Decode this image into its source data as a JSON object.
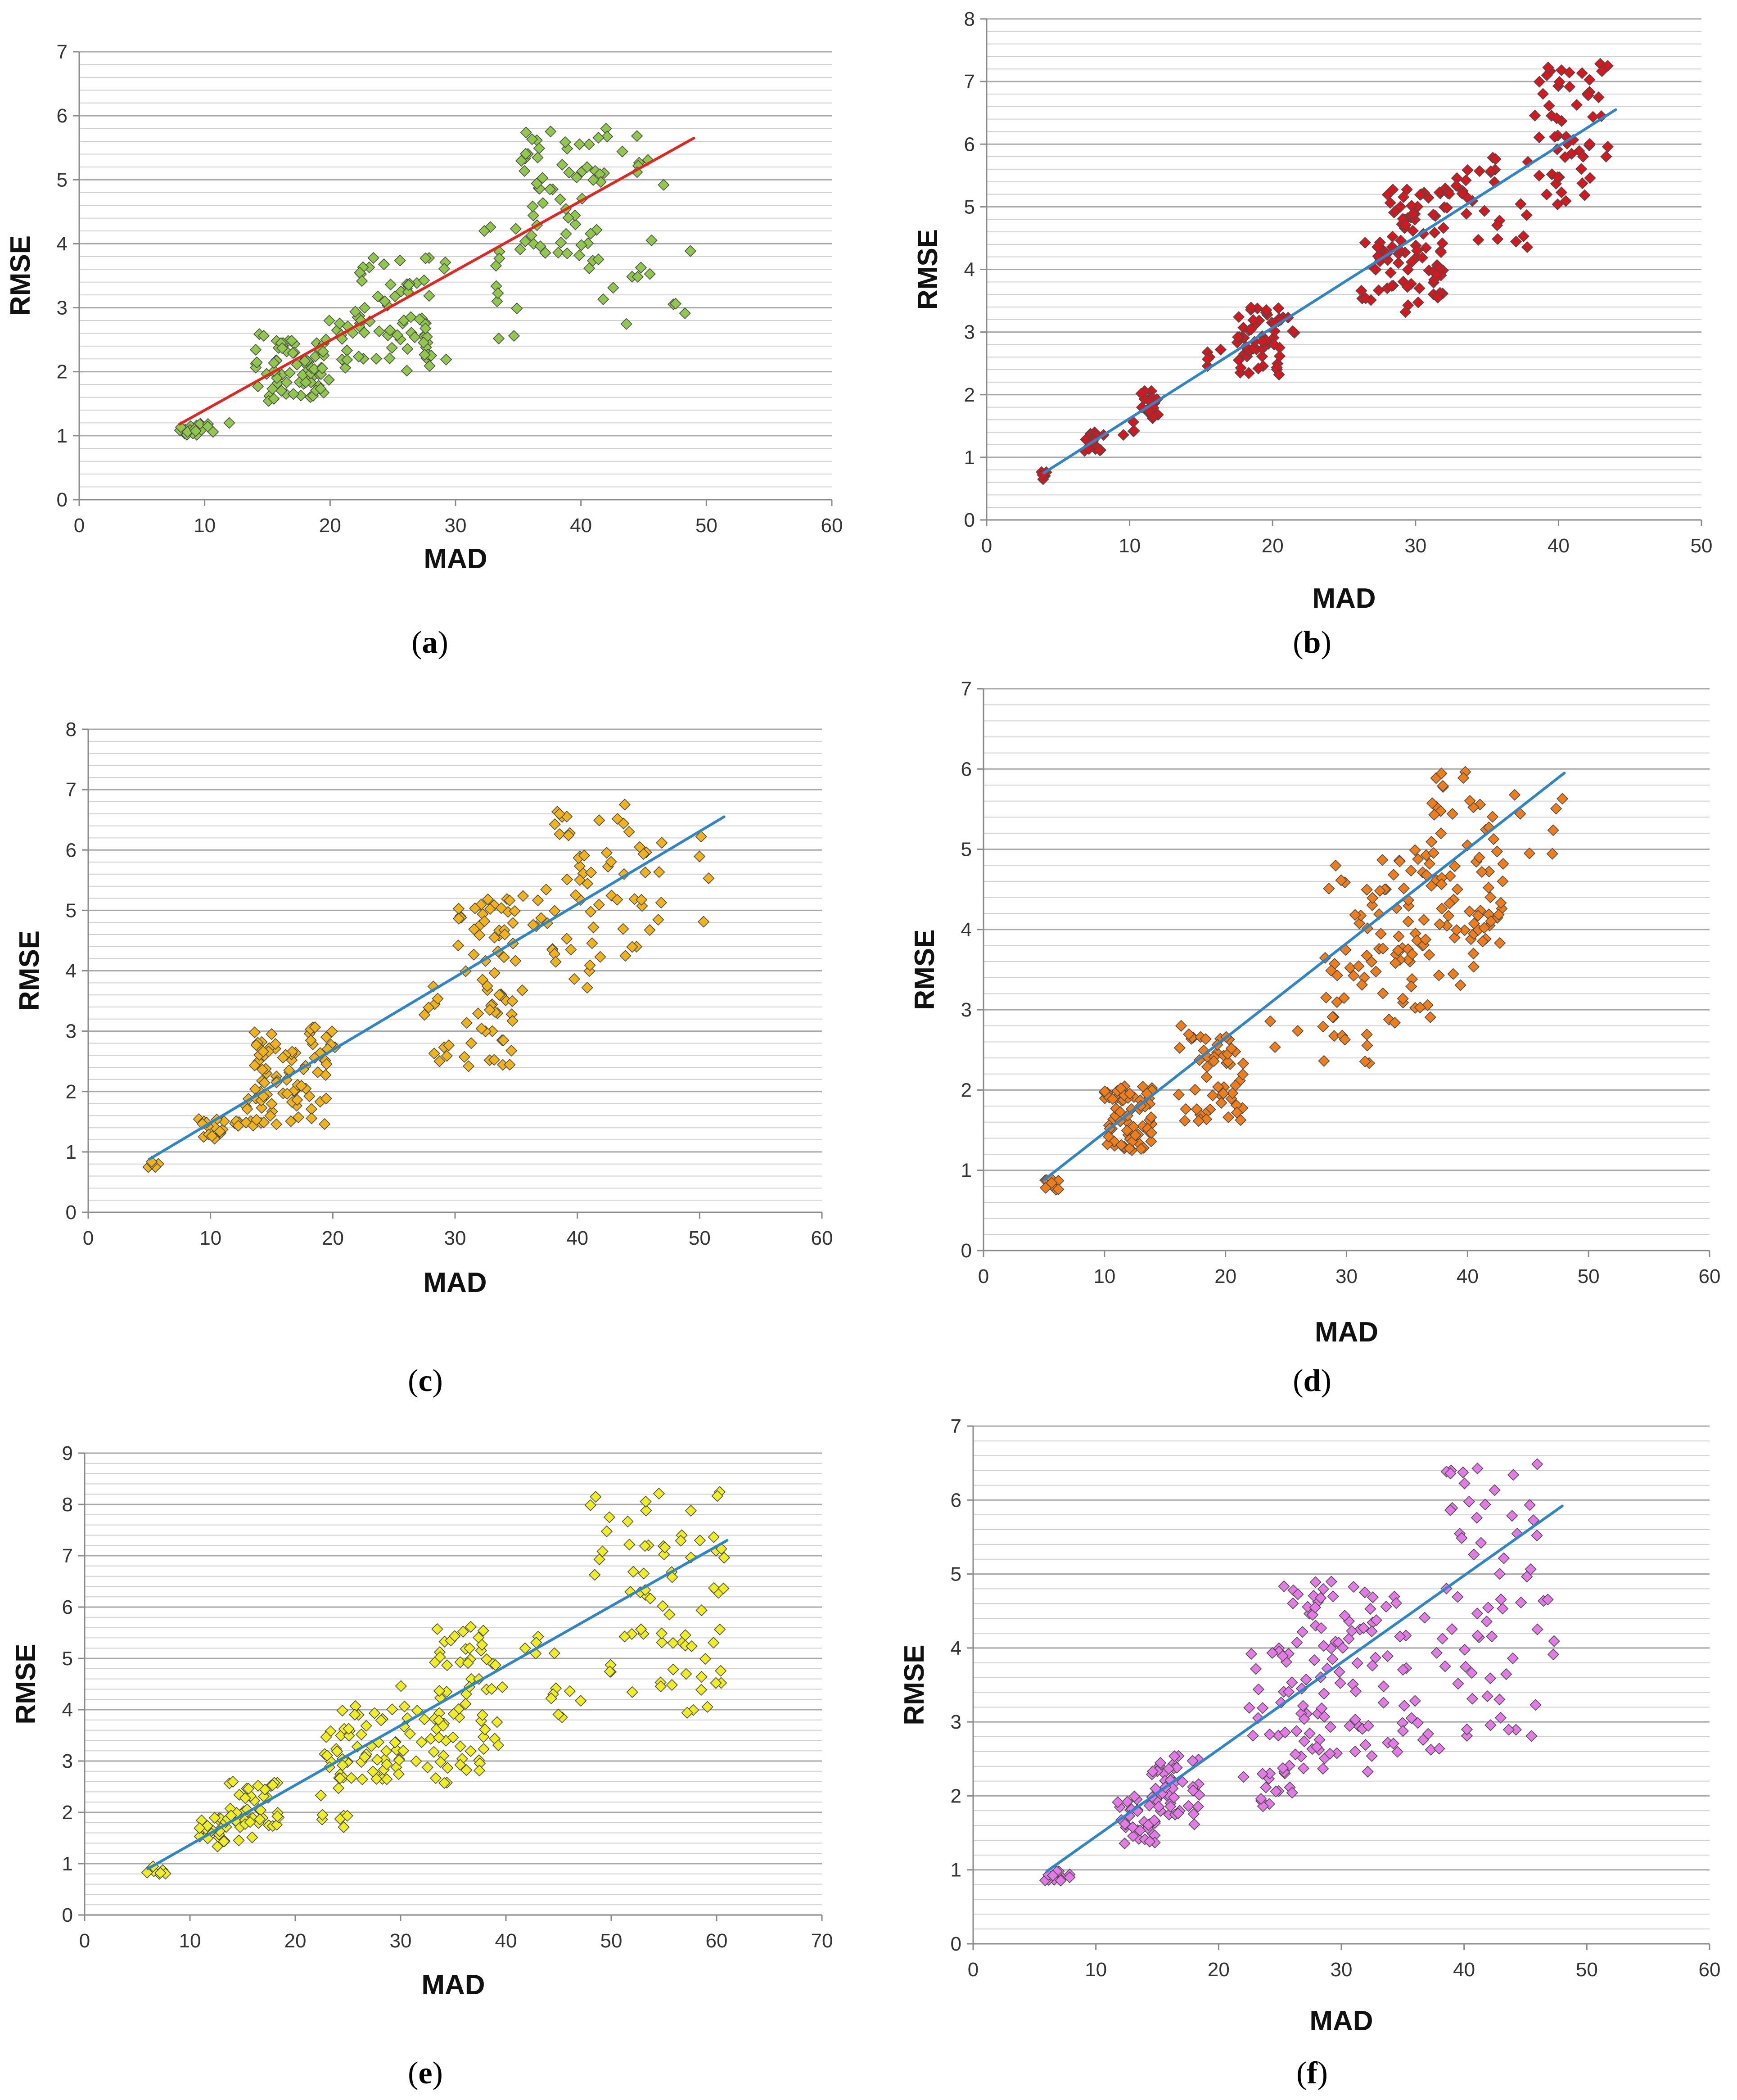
{
  "figure": {
    "panels": [
      {
        "id": "a",
        "caption_open": "(",
        "caption_letter": "a",
        "caption_close": ")",
        "marker_color": "#8fc84a",
        "trend_color": "#e3261f"
      },
      {
        "id": "b",
        "caption_open": "(",
        "caption_letter": "b",
        "caption_close": ")",
        "marker_color": "#d4181d",
        "trend_color": "#2e86c8"
      },
      {
        "id": "c",
        "caption_open": "(",
        "caption_letter": "c",
        "caption_close": ")",
        "marker_color": "#f0b31a",
        "trend_color": "#2e86c8"
      },
      {
        "id": "d",
        "caption_open": "(",
        "caption_letter": "d",
        "caption_close": ")",
        "marker_color": "#ef7d1a",
        "trend_color": "#2e86c8"
      },
      {
        "id": "e",
        "caption_open": "(",
        "caption_letter": "e",
        "caption_close": ")",
        "marker_color": "#eeee22",
        "trend_color": "#2e86c8"
      },
      {
        "id": "f",
        "caption_open": "(",
        "caption_letter": "f",
        "caption_close": ")",
        "marker_color": "#e37ae6",
        "trend_color": "#2e86c8"
      }
    ]
  },
  "chart_data": [
    {
      "type": "scatter",
      "panel": "a",
      "xlabel": "MAD",
      "ylabel": "RMSE",
      "xlim": [
        0,
        60
      ],
      "ylim": [
        0,
        7
      ],
      "xticks": [
        0,
        10,
        20,
        30,
        40,
        50,
        60
      ],
      "yticks": [
        0,
        1,
        2,
        3,
        4,
        5,
        6,
        7
      ],
      "grid": true,
      "trendline": {
        "x": [
          8,
          49
        ],
        "y": [
          1.18,
          5.65
        ]
      },
      "clusters": [
        {
          "x": [
            7.9,
            10
          ],
          "y": [
            1.0,
            1.2
          ],
          "n": 20
        },
        {
          "x": [
            10,
            12
          ],
          "y": [
            1.05,
            1.2
          ],
          "n": 4
        },
        {
          "x": [
            14,
            16.5
          ],
          "y": [
            1.4,
            2.6
          ],
          "n": 16
        },
        {
          "x": [
            15.5,
            19.5
          ],
          "y": [
            1.6,
            2.5
          ],
          "n": 55
        },
        {
          "x": [
            19,
            22
          ],
          "y": [
            1.8,
            3.0
          ],
          "n": 15
        },
        {
          "x": [
            22,
            28
          ],
          "y": [
            2.2,
            3.8
          ],
          "n": 55
        },
        {
          "x": [
            26,
            29.5
          ],
          "y": [
            2.0,
            3.8
          ],
          "n": 14
        },
        {
          "x": [
            32,
            35
          ],
          "y": [
            2.4,
            4.3
          ],
          "n": 12
        },
        {
          "x": [
            35,
            42
          ],
          "y": [
            3.5,
            5.8
          ],
          "n": 55
        },
        {
          "x": [
            40,
            46
          ],
          "y": [
            2.6,
            5.7
          ],
          "n": 22
        },
        {
          "x": [
            46,
            49
          ],
          "y": [
            2.8,
            5.3
          ],
          "n": 5
        }
      ]
    },
    {
      "type": "scatter",
      "panel": "b",
      "xlabel": "MAD",
      "ylabel": "RMSE",
      "xlim": [
        0,
        50
      ],
      "ylim": [
        0,
        8
      ],
      "xticks": [
        0,
        10,
        20,
        30,
        40,
        50
      ],
      "yticks": [
        0,
        1,
        2,
        3,
        4,
        5,
        6,
        7,
        8
      ],
      "grid": true,
      "trendline": {
        "x": [
          4,
          44
        ],
        "y": [
          0.75,
          6.55
        ]
      },
      "clusters": [
        {
          "x": [
            3.8,
            4.2
          ],
          "y": [
            0.6,
            0.8
          ],
          "n": 5
        },
        {
          "x": [
            6.8,
            8.2
          ],
          "y": [
            1.1,
            1.4
          ],
          "n": 16
        },
        {
          "x": [
            9,
            10.5
          ],
          "y": [
            1.3,
            1.6
          ],
          "n": 4
        },
        {
          "x": [
            10.8,
            12.2
          ],
          "y": [
            1.6,
            2.1
          ],
          "n": 22
        },
        {
          "x": [
            15,
            17
          ],
          "y": [
            2.4,
            2.8
          ],
          "n": 5
        },
        {
          "x": [
            17.5,
            20.5
          ],
          "y": [
            2.3,
            3.4
          ],
          "n": 55
        },
        {
          "x": [
            20.5,
            22
          ],
          "y": [
            2.9,
            3.3
          ],
          "n": 5
        },
        {
          "x": [
            26,
            28
          ],
          "y": [
            3.5,
            4.5
          ],
          "n": 15
        },
        {
          "x": [
            28,
            32
          ],
          "y": [
            3.3,
            5.3
          ],
          "n": 75
        },
        {
          "x": [
            32,
            35
          ],
          "y": [
            4.3,
            5.6
          ],
          "n": 18
        },
        {
          "x": [
            35,
            38
          ],
          "y": [
            4.2,
            6.0
          ],
          "n": 15
        },
        {
          "x": [
            38,
            44
          ],
          "y": [
            5.0,
            7.3
          ],
          "n": 55
        }
      ]
    },
    {
      "type": "scatter",
      "panel": "c",
      "xlabel": "MAD",
      "ylabel": "RMSE",
      "xlim": [
        0,
        60
      ],
      "ylim": [
        0,
        8
      ],
      "xticks": [
        0,
        10,
        20,
        30,
        40,
        50,
        60
      ],
      "yticks": [
        0,
        1,
        2,
        3,
        4,
        5,
        6,
        7,
        8
      ],
      "grid": true,
      "trendline": {
        "x": [
          5,
          52
        ],
        "y": [
          0.88,
          6.55
        ]
      },
      "clusters": [
        {
          "x": [
            4.8,
            6.2
          ],
          "y": [
            0.7,
            0.85
          ],
          "n": 6
        },
        {
          "x": [
            8.8,
            11.2
          ],
          "y": [
            1.2,
            1.6
          ],
          "n": 16
        },
        {
          "x": [
            11.5,
            13.5
          ],
          "y": [
            1.3,
            1.9
          ],
          "n": 10
        },
        {
          "x": [
            13.5,
            19.5
          ],
          "y": [
            1.4,
            3.1
          ],
          "n": 80
        },
        {
          "x": [
            19.5,
            21
          ],
          "y": [
            2.6,
            3.0
          ],
          "n": 4
        },
        {
          "x": [
            27,
            30
          ],
          "y": [
            2.1,
            3.8
          ],
          "n": 10
        },
        {
          "x": [
            30,
            35
          ],
          "y": [
            2.4,
            5.2
          ],
          "n": 65
        },
        {
          "x": [
            35,
            38
          ],
          "y": [
            3.3,
            5.5
          ],
          "n": 10
        },
        {
          "x": [
            38,
            47
          ],
          "y": [
            3.7,
            6.9
          ],
          "n": 60
        },
        {
          "x": [
            47,
            52
          ],
          "y": [
            4.7,
            6.9
          ],
          "n": 4
        }
      ]
    },
    {
      "type": "scatter",
      "panel": "d",
      "xlabel": "MAD",
      "ylabel": "RMSE",
      "xlim": [
        0,
        60
      ],
      "ylim": [
        0,
        7
      ],
      "xticks": [
        0,
        10,
        20,
        30,
        40,
        50,
        60
      ],
      "yticks": [
        0,
        1,
        2,
        3,
        4,
        5,
        6,
        7
      ],
      "grid": true,
      "trendline": {
        "x": [
          5,
          48
        ],
        "y": [
          0.88,
          5.95
        ]
      },
      "clusters": [
        {
          "x": [
            4.8,
            6.2
          ],
          "y": [
            0.75,
            0.9
          ],
          "n": 10
        },
        {
          "x": [
            10,
            14
          ],
          "y": [
            1.25,
            2.05
          ],
          "n": 70
        },
        {
          "x": [
            16,
            21.5
          ],
          "y": [
            1.6,
            2.8
          ],
          "n": 55
        },
        {
          "x": [
            22,
            26
          ],
          "y": [
            2.5,
            2.9
          ],
          "n": 3
        },
        {
          "x": [
            28,
            32
          ],
          "y": [
            2.3,
            4.8
          ],
          "n": 35
        },
        {
          "x": [
            32,
            37
          ],
          "y": [
            2.8,
            5.0
          ],
          "n": 55
        },
        {
          "x": [
            37,
            43
          ],
          "y": [
            3.3,
            6.0
          ],
          "n": 70
        },
        {
          "x": [
            43,
            48
          ],
          "y": [
            4.8,
            5.9
          ],
          "n": 7
        }
      ]
    },
    {
      "type": "scatter",
      "panel": "e",
      "xlabel": "MAD",
      "ylabel": "RMSE",
      "xlim": [
        0,
        70
      ],
      "ylim": [
        0,
        9
      ],
      "xticks": [
        0,
        10,
        20,
        30,
        40,
        50,
        60,
        70
      ],
      "yticks": [
        0,
        1,
        2,
        3,
        4,
        5,
        6,
        7,
        8,
        9
      ],
      "grid": true,
      "trendline": {
        "x": [
          6,
          61
        ],
        "y": [
          0.9,
          7.3
        ]
      },
      "clusters": [
        {
          "x": [
            5.8,
            8
          ],
          "y": [
            0.8,
            0.95
          ],
          "n": 8
        },
        {
          "x": [
            10.8,
            13.5
          ],
          "y": [
            1.3,
            1.9
          ],
          "n": 25
        },
        {
          "x": [
            13.5,
            18.5
          ],
          "y": [
            1.4,
            2.6
          ],
          "n": 45
        },
        {
          "x": [
            22,
            25
          ],
          "y": [
            1.7,
            3.7
          ],
          "n": 20
        },
        {
          "x": [
            24,
            30
          ],
          "y": [
            2.6,
            4.1
          ],
          "n": 45
        },
        {
          "x": [
            30,
            35
          ],
          "y": [
            2.3,
            4.6
          ],
          "n": 20
        },
        {
          "x": [
            33,
            40
          ],
          "y": [
            2.8,
            5.7
          ],
          "n": 60
        },
        {
          "x": [
            40,
            48
          ],
          "y": [
            3.8,
            5.8
          ],
          "n": 12
        },
        {
          "x": [
            48,
            61
          ],
          "y": [
            3.8,
            8.3
          ],
          "n": 75
        }
      ]
    },
    {
      "type": "scatter",
      "panel": "f",
      "xlabel": "MAD",
      "ylabel": "RMSE",
      "xlim": [
        0,
        60
      ],
      "ylim": [
        0,
        7
      ],
      "xticks": [
        0,
        10,
        20,
        30,
        40,
        50,
        60
      ],
      "yticks": [
        0,
        1,
        2,
        3,
        4,
        5,
        6,
        7
      ],
      "grid": true,
      "trendline": {
        "x": [
          6,
          48
        ],
        "y": [
          0.98,
          5.92
        ]
      },
      "clusters": [
        {
          "x": [
            5.8,
            8.2
          ],
          "y": [
            0.85,
            1.0
          ],
          "n": 12
        },
        {
          "x": [
            11.5,
            15
          ],
          "y": [
            1.35,
            2.0
          ],
          "n": 35
        },
        {
          "x": [
            14.5,
            18.5
          ],
          "y": [
            1.6,
            2.55
          ],
          "n": 45
        },
        {
          "x": [
            22,
            26
          ],
          "y": [
            1.8,
            4.1
          ],
          "n": 35
        },
        {
          "x": [
            25,
            33
          ],
          "y": [
            2.3,
            4.9
          ],
          "n": 85
        },
        {
          "x": [
            33,
            38
          ],
          "y": [
            2.3,
            4.7
          ],
          "n": 25
        },
        {
          "x": [
            38,
            46
          ],
          "y": [
            2.8,
            6.5
          ],
          "n": 60
        },
        {
          "x": [
            46,
            48
          ],
          "y": [
            3.9,
            4.7
          ],
          "n": 4
        }
      ]
    }
  ]
}
